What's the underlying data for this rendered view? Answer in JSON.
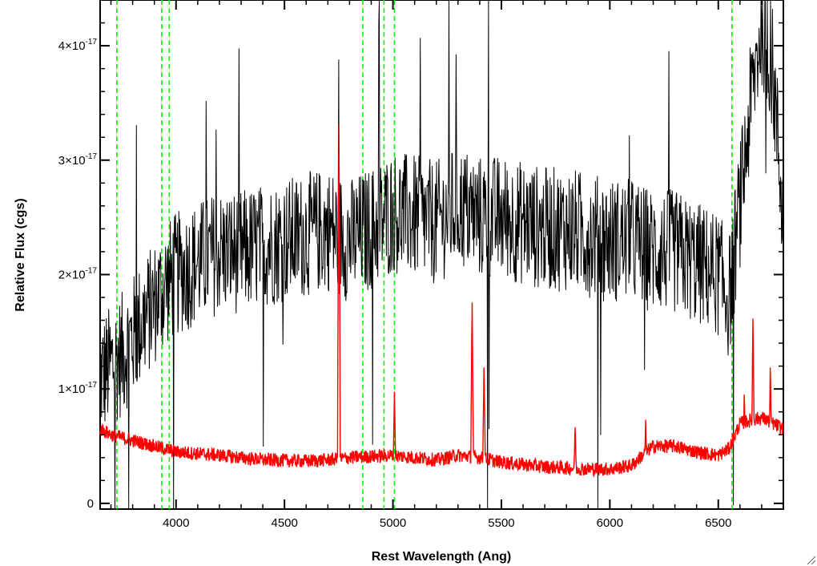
{
  "chart_data": {
    "type": "line",
    "title": "",
    "xlabel": "Rest Wavelength (Ang)",
    "ylabel": "Relative Flux (cgs)",
    "xlim": [
      3650,
      6800
    ],
    "ylim": [
      -0.05,
      4.4
    ],
    "y_scale_exponent": -17,
    "x_ticks": [
      {
        "value": 4000,
        "label": "4000"
      },
      {
        "value": 4500,
        "label": "4500"
      },
      {
        "value": 5000,
        "label": "5000"
      },
      {
        "value": 5500,
        "label": "5500"
      },
      {
        "value": 6000,
        "label": "6000"
      },
      {
        "value": 6500,
        "label": "6500"
      }
    ],
    "y_ticks": [
      {
        "value": 0,
        "mant": "0",
        "exp": ""
      },
      {
        "value": 1,
        "mant": "1×10",
        "exp": "-17"
      },
      {
        "value": 2,
        "mant": "2×10",
        "exp": "-17"
      },
      {
        "value": 3,
        "mant": "3×10",
        "exp": "-17"
      },
      {
        "value": 4,
        "mant": "4×10",
        "exp": "-17"
      }
    ],
    "series": [
      {
        "color": "#000000",
        "x": [
          3650,
          3700,
          3750,
          3800,
          3850,
          3900,
          3950,
          4000,
          4100,
          4200,
          4300,
          4400,
          4500,
          4600,
          4700,
          4750,
          4800,
          4900,
          5000,
          5100,
          5200,
          5300,
          5400,
          5500,
          5600,
          5700,
          5800,
          5900,
          6000,
          6100,
          6200,
          6300,
          6400,
          6500,
          6550,
          6600,
          6650,
          6700,
          6750,
          6800
        ],
        "y": [
          1.1,
          1.2,
          1.3,
          1.45,
          1.6,
          1.75,
          1.9,
          2.0,
          2.1,
          2.2,
          2.2,
          2.25,
          2.3,
          2.35,
          2.4,
          2.35,
          2.3,
          2.4,
          2.55,
          2.5,
          2.45,
          2.6,
          2.5,
          2.5,
          2.45,
          2.4,
          2.4,
          2.35,
          2.3,
          2.3,
          2.2,
          2.2,
          2.1,
          2.0,
          1.8,
          2.6,
          3.5,
          4.2,
          3.8,
          2.5
        ],
        "noise": 0.55
      },
      {
        "color": "#ff0000",
        "x": [
          3650,
          3700,
          3800,
          3900,
          4000,
          4200,
          4400,
          4600,
          4700,
          4800,
          5000,
          5100,
          5200,
          5300,
          5400,
          5500,
          5600,
          5700,
          5800,
          5900,
          6000,
          6100,
          6150,
          6200,
          6300,
          6400,
          6500,
          6550,
          6600,
          6700,
          6800
        ],
        "y": [
          0.65,
          0.6,
          0.55,
          0.5,
          0.45,
          0.42,
          0.38,
          0.37,
          0.38,
          0.4,
          0.42,
          0.4,
          0.38,
          0.42,
          0.4,
          0.36,
          0.34,
          0.32,
          0.31,
          0.3,
          0.3,
          0.33,
          0.42,
          0.5,
          0.5,
          0.45,
          0.42,
          0.48,
          0.7,
          0.75,
          0.65
        ],
        "noise": 0.06,
        "peaks": [
          {
            "x": 4751,
            "y": 3.4
          },
          {
            "x": 5007,
            "y": 1.0
          },
          {
            "x": 5365,
            "y": 1.8
          },
          {
            "x": 5420,
            "y": 1.25
          },
          {
            "x": 5840,
            "y": 0.7
          },
          {
            "x": 6165,
            "y": 0.75
          },
          {
            "x": 6620,
            "y": 1.0
          },
          {
            "x": 6660,
            "y": 1.7
          },
          {
            "x": 6740,
            "y": 1.25
          }
        ]
      }
    ],
    "reference_lines": {
      "color": "#00ff00",
      "x": [
        3727,
        3934,
        3969,
        4861,
        4959,
        5007,
        6563
      ]
    }
  }
}
